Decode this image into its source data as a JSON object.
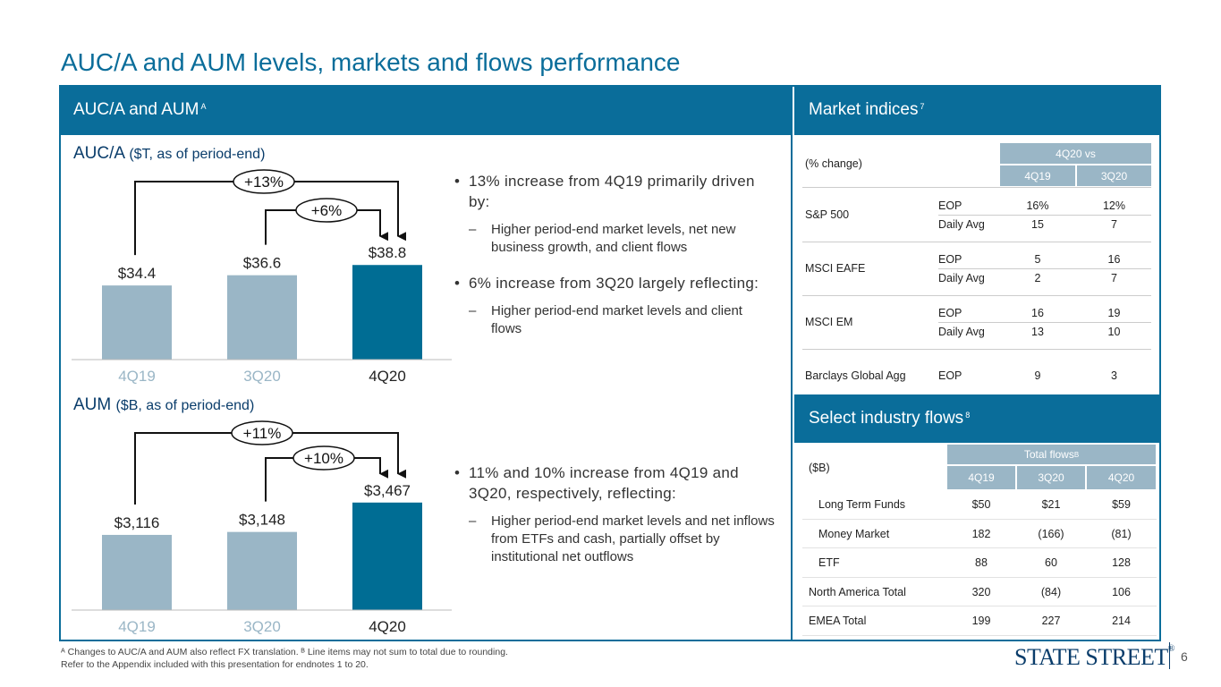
{
  "title": "AUC/A and AUM levels, markets and flows performance",
  "left_header": {
    "text": "AUC/A and AUM",
    "sup": "A"
  },
  "market_header": {
    "text": "Market indices",
    "sup": "7"
  },
  "flows_header": {
    "text": "Select industry flows",
    "sup": "8"
  },
  "colors": {
    "accent": "#0a6d9a",
    "bar_light": "#9ab6c6",
    "bar_dark": "#006d94",
    "navy": "#0a3d6b"
  },
  "chart_data": [
    {
      "type": "bar",
      "title": "AUC/A",
      "subtitle": "($T, as of period-end)",
      "categories": [
        "4Q19",
        "3Q20",
        "4Q20"
      ],
      "values": [
        34.4,
        36.6,
        38.8
      ],
      "value_labels": [
        "$34.4",
        "$36.6",
        "$38.8"
      ],
      "annotations": [
        "+13%",
        "+6%"
      ]
    },
    {
      "type": "bar",
      "title": "AUM",
      "subtitle": "($B, as of period-end)",
      "categories": [
        "4Q19",
        "3Q20",
        "4Q20"
      ],
      "values": [
        3116,
        3148,
        3467
      ],
      "value_labels": [
        "$3,116",
        "$3,148",
        "$3,467"
      ],
      "annotations": [
        "+11%",
        "+10%"
      ]
    }
  ],
  "bullets1": [
    {
      "text": "13% increase from 4Q19 primarily driven by:",
      "sub": "Higher period-end market levels, net new business growth, and client flows"
    },
    {
      "text": "6% increase from 3Q20 largely reflecting:",
      "sub": "Higher period-end market levels and client flows"
    }
  ],
  "bullets2": [
    {
      "text": "11% and 10% increase from 4Q19 and 3Q20, respectively, reflecting:",
      "sub": "Higher period-end market levels and net inflows from ETFs and cash, partially offset by institutional net outflows"
    }
  ],
  "market": {
    "unit": "(% change)",
    "group": "4Q20 vs",
    "cols": [
      "4Q19",
      "3Q20"
    ],
    "rows": [
      {
        "index": "S&P 500",
        "lines": [
          [
            "EOP",
            "16%",
            "12%"
          ],
          [
            "Daily Avg",
            "15",
            "7"
          ]
        ]
      },
      {
        "index": "MSCI EAFE",
        "lines": [
          [
            "EOP",
            "5",
            "16"
          ],
          [
            "Daily Avg",
            "2",
            "7"
          ]
        ]
      },
      {
        "index": "MSCI EM",
        "lines": [
          [
            "EOP",
            "16",
            "19"
          ],
          [
            "Daily Avg",
            "13",
            "10"
          ]
        ]
      },
      {
        "index": "Barclays Global Agg",
        "lines": [
          [
            "EOP",
            "9",
            "3"
          ]
        ]
      }
    ]
  },
  "flows": {
    "unit": "($B)",
    "group": "Total flows",
    "group_sup": "B",
    "cols": [
      "4Q19",
      "3Q20",
      "4Q20"
    ],
    "rows": [
      [
        "Long Term Funds",
        "$50",
        "$21",
        "$59"
      ],
      [
        "Money Market",
        "182",
        "(166)",
        "(81)"
      ],
      [
        "ETF",
        "88",
        "60",
        "128"
      ],
      [
        "North America Total",
        "320",
        "(84)",
        "106"
      ],
      [
        "EMEA Total",
        "199",
        "227",
        "214"
      ]
    ]
  },
  "footnote1": "ᴬ Changes to AUC/A and AUM also reflect FX translation. ᴮ Line items may not sum to total due to rounding.",
  "footnote2": "Refer to the Appendix included with this presentation for endnotes 1 to 20.",
  "logo": "STATE STREET",
  "page_number": "6"
}
